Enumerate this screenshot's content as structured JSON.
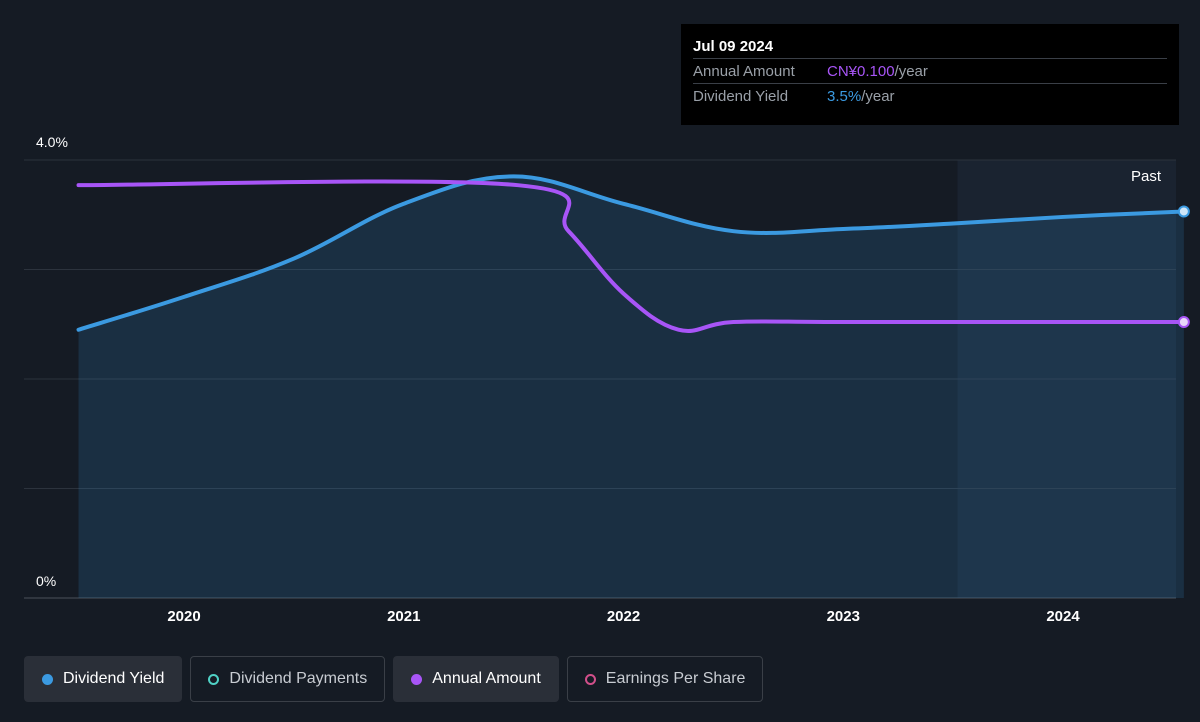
{
  "tooltip": {
    "date": "Jul 09 2024",
    "rows": [
      {
        "label": "Annual Amount",
        "value": "CN¥0.100",
        "unit": "/year"
      },
      {
        "label": "Dividend Yield",
        "value": "3.5%",
        "unit": "/year"
      }
    ]
  },
  "past_label": "Past",
  "legend": [
    {
      "label": "Dividend Yield",
      "color": "#3b9ae1",
      "active": true,
      "filled": true
    },
    {
      "label": "Dividend Payments",
      "color": "#4fd1c5",
      "active": false,
      "filled": false
    },
    {
      "label": "Annual Amount",
      "color": "#a855f7",
      "active": true,
      "filled": true
    },
    {
      "label": "Earnings Per Share",
      "color": "#d14f8a",
      "active": false,
      "filled": false
    }
  ],
  "chart_data": {
    "type": "line",
    "y_tick_labels": [
      "4.0%",
      "0%"
    ],
    "ylim": [
      0,
      4.0
    ],
    "x_ticks": [
      2020,
      2021,
      2022,
      2023,
      2024
    ],
    "xlim": [
      2019.5,
      2024.55
    ],
    "past_region_start": 2023.52,
    "grid": true,
    "series": [
      {
        "name": "Dividend Yield",
        "color": "#3b9ae1",
        "filled": true,
        "points": [
          [
            2019.52,
            2.45
          ],
          [
            2020.0,
            2.75
          ],
          [
            2020.5,
            3.1
          ],
          [
            2021.0,
            3.6
          ],
          [
            2021.5,
            3.85
          ],
          [
            2022.0,
            3.6
          ],
          [
            2022.5,
            3.35
          ],
          [
            2023.0,
            3.37
          ],
          [
            2023.5,
            3.42
          ],
          [
            2024.0,
            3.48
          ],
          [
            2024.55,
            3.53
          ]
        ]
      },
      {
        "name": "Annual Amount",
        "color": "#a855f7",
        "filled": false,
        "points": [
          [
            2019.52,
            3.77
          ],
          [
            2021.52,
            3.77
          ],
          [
            2021.75,
            3.35
          ],
          [
            2022.0,
            2.78
          ],
          [
            2022.25,
            2.45
          ],
          [
            2022.5,
            2.52
          ],
          [
            2023.0,
            2.52
          ],
          [
            2024.0,
            2.52
          ],
          [
            2024.55,
            2.52
          ]
        ]
      }
    ]
  }
}
